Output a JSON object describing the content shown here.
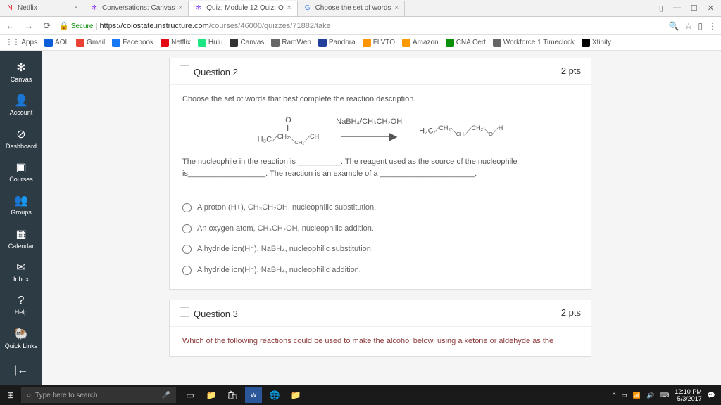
{
  "tabs": [
    {
      "icon": "N",
      "iconColor": "#e50914",
      "title": "Netflix"
    },
    {
      "icon": "✻",
      "iconColor": "#7b2ff7",
      "title": "Conversations: Canvas"
    },
    {
      "icon": "✻",
      "iconColor": "#7b2ff7",
      "title": "Quiz: Module 12 Quiz: O",
      "active": true
    },
    {
      "icon": "G",
      "iconColor": "#4285f4",
      "title": "Choose the set of words"
    }
  ],
  "url": {
    "secure": "Secure",
    "host": "https://colostate.instructure.com",
    "path": "/courses/46000/quizzes/71882/take"
  },
  "bookmarks": [
    {
      "label": "Apps",
      "color": "#666"
    },
    {
      "label": "AOL",
      "color": "#0b5ed7"
    },
    {
      "label": "Gmail",
      "color": "#ea4335"
    },
    {
      "label": "Facebook",
      "color": "#1877f2"
    },
    {
      "label": "Netflix",
      "color": "#e50914"
    },
    {
      "label": "Hulu",
      "color": "#1ce783"
    },
    {
      "label": "Canvas",
      "color": "#333"
    },
    {
      "label": "RamWeb",
      "color": "#666"
    },
    {
      "label": "Pandora",
      "color": "#224099"
    },
    {
      "label": "FLVTO",
      "color": "#ff9500"
    },
    {
      "label": "Amazon",
      "color": "#ff9900"
    },
    {
      "label": "CNA Cert",
      "color": "#0a8f08"
    },
    {
      "label": "Workforce 1 Timeclock",
      "color": "#666"
    },
    {
      "label": "Xfinity",
      "color": "#000"
    }
  ],
  "sidebar": [
    {
      "icon": "✻",
      "label": "Canvas"
    },
    {
      "icon": "👤",
      "label": "Account"
    },
    {
      "icon": "⊘",
      "label": "Dashboard"
    },
    {
      "icon": "▣",
      "label": "Courses"
    },
    {
      "icon": "👥",
      "label": "Groups"
    },
    {
      "icon": "▦",
      "label": "Calendar"
    },
    {
      "icon": "✉",
      "label": "Inbox"
    },
    {
      "icon": "?",
      "label": "Help"
    },
    {
      "icon": "🐏",
      "label": "Quick Links"
    },
    {
      "icon": "|←",
      "label": ""
    }
  ],
  "q2": {
    "title": "Question 2",
    "pts": "2 pts",
    "prompt": "Choose the set of words that best complete the reaction description.",
    "reagent": "NaBH₄/CH₃CH₂OH",
    "fill": "The nucleophile in the reaction is __________. The reagent used as the source of the nucleophile is__________________. The reaction is an example of a ______________________.",
    "choices": [
      "A proton (H+), CH₃CH₂OH, nucleophilic substitution.",
      "An oxygen atom, CH₃CH₂OH, nucleophilic addition.",
      "A hydride ion(H⁻), NaBH₄, nucleophilic substitution.",
      "A hydride ion(H⁻), NaBH₄, nucleophilic addition."
    ]
  },
  "q3": {
    "title": "Question 3",
    "pts": "2 pts",
    "prompt": "Which of the following reactions could be used to make the alcohol below, using a ketone or aldehyde as the"
  },
  "taskbar": {
    "search": "Type here to search",
    "time": "12:10 PM",
    "date": "5/3/2017"
  }
}
